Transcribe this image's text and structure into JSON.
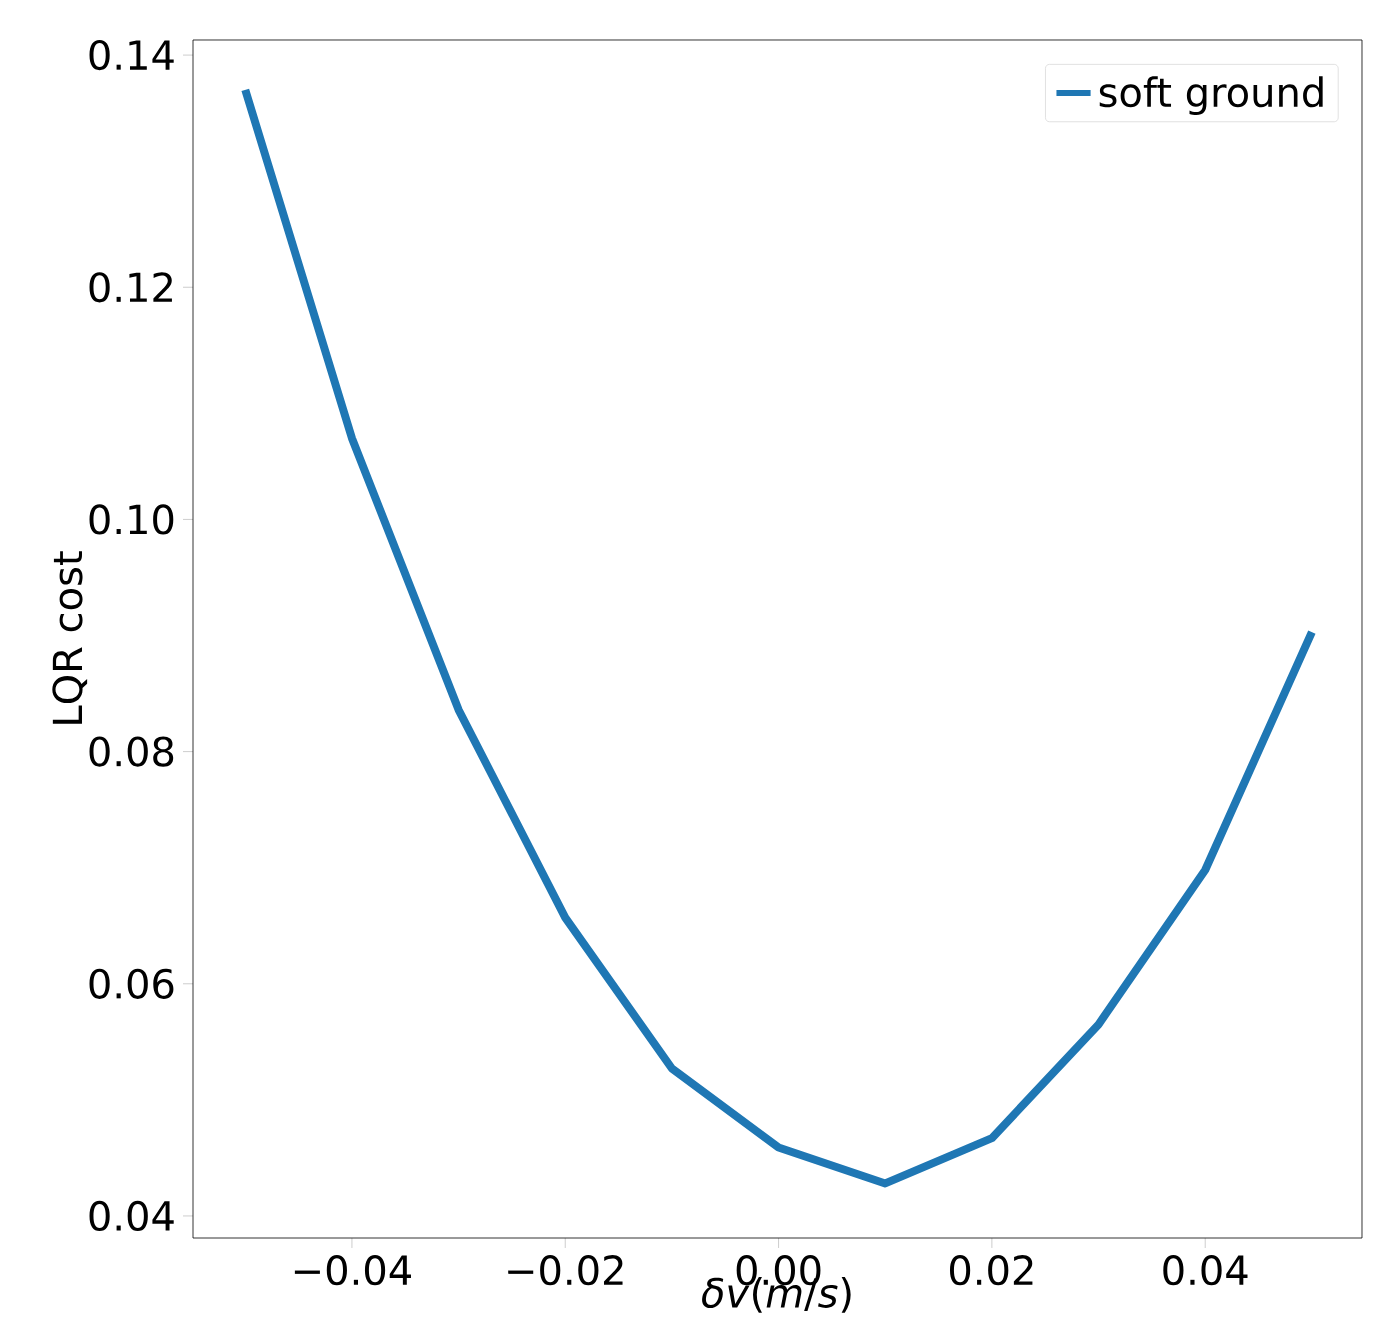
{
  "chart_data": {
    "type": "line",
    "xlabel": "*δv*(*m*/*s*)",
    "ylabel": "LQR cost",
    "legend": "top right",
    "x": [
      -0.05,
      -0.04,
      -0.03,
      -0.02,
      -0.01,
      0.0,
      0.01,
      0.02,
      0.03,
      0.04,
      0.05
    ],
    "series": [
      {
        "name": "soft ground",
        "color": "#1f77b4",
        "values": [
          0.137,
          0.107,
          0.0836,
          0.0657,
          0.0527,
          0.0459,
          0.0428,
          0.0467,
          0.0565,
          0.0698,
          0.0903
        ]
      }
    ],
    "xlim": [
      -0.0549,
      0.0547
    ],
    "ylim": [
      0.0381,
      0.1413
    ],
    "xticks": [
      {
        "value": -0.04,
        "label": "−0.04"
      },
      {
        "value": -0.02,
        "label": "−0.02"
      },
      {
        "value": 0.0,
        "label": "0.00"
      },
      {
        "value": 0.02,
        "label": "0.02"
      },
      {
        "value": 0.04,
        "label": "0.04"
      }
    ],
    "yticks": [
      {
        "value": 0.04,
        "label": "0.04"
      },
      {
        "value": 0.06,
        "label": "0.06"
      },
      {
        "value": 0.08,
        "label": "0.08"
      },
      {
        "value": 0.1,
        "label": "0.10"
      },
      {
        "value": 0.12,
        "label": "0.12"
      },
      {
        "value": 0.14,
        "label": "0.14"
      }
    ]
  }
}
